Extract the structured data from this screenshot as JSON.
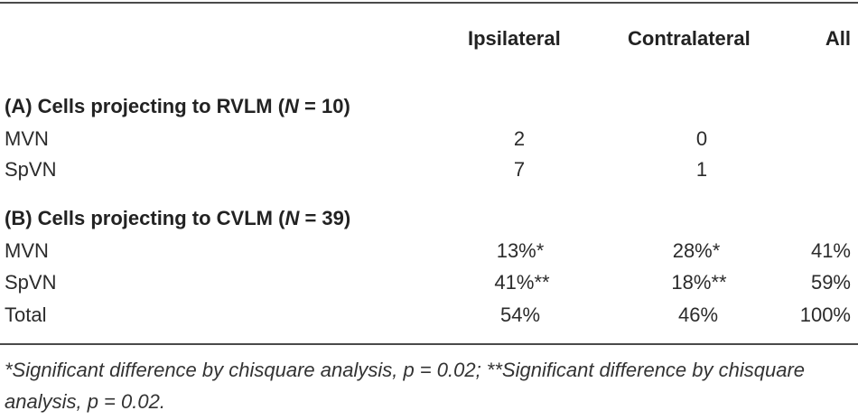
{
  "header": {
    "ipsilateral": "Ipsilateral",
    "contralateral": "Contralateral",
    "all": "All"
  },
  "section_a": {
    "title_pre": "(A) Cells projecting to RVLM (",
    "n_symbol": "N",
    "title_post": " = 10)",
    "rows": [
      {
        "label": "MVN",
        "ipsi": "2",
        "contra": "0",
        "all": ""
      },
      {
        "label": "SpVN",
        "ipsi": "7",
        "contra": "1",
        "all": ""
      }
    ]
  },
  "section_b": {
    "title_pre": "(B) Cells projecting to CVLM (",
    "n_symbol": "N",
    "title_post": " = 39)",
    "rows": [
      {
        "label": "MVN",
        "ipsi": "13%*",
        "contra": "28%*",
        "all": "41%"
      },
      {
        "label": "SpVN",
        "ipsi": "41%**",
        "contra": "18%**",
        "all": "59%"
      },
      {
        "label": "Total",
        "ipsi": "54%",
        "contra": "46%",
        "all": "100%"
      }
    ]
  },
  "footnote": "*Significant difference by chisquare analysis, p = 0.02; **Significant difference by chisquare analysis, p = 0.02."
}
